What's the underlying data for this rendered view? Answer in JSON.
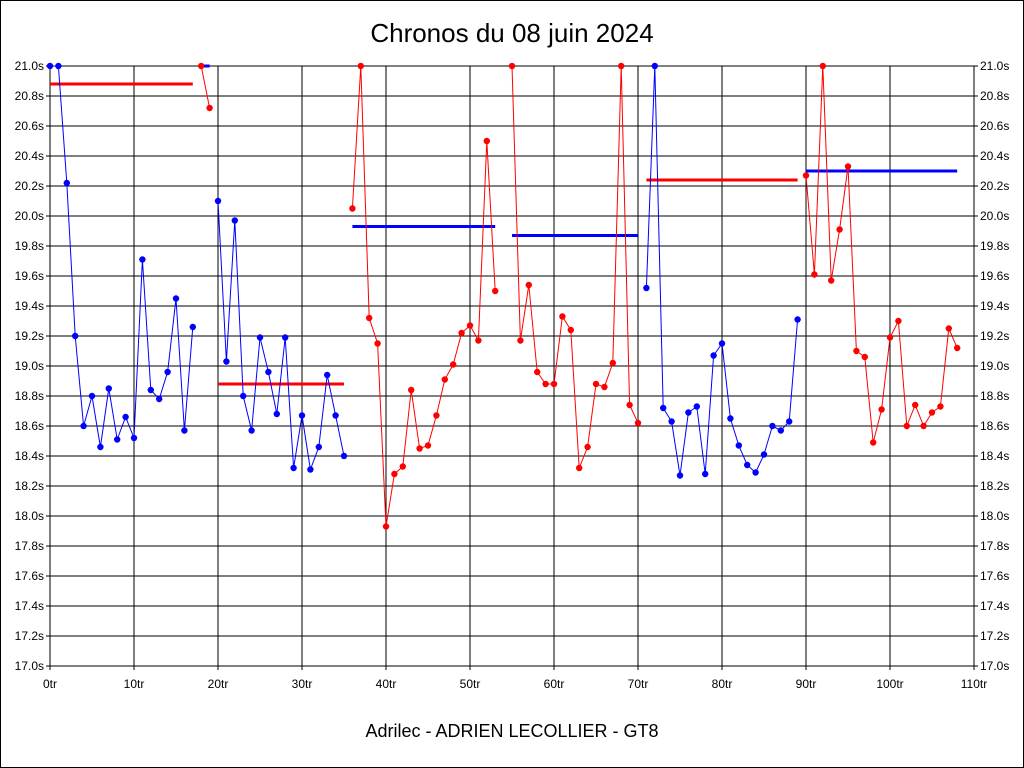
{
  "chart_data": {
    "type": "line",
    "title": "Chronos du 08 juin 2024",
    "footer": "Adrilec - ADRIEN LECOLLIER - GT8",
    "xlabel": "",
    "ylabel": "",
    "xlim": [
      0,
      110
    ],
    "ylim": [
      17.0,
      21.0
    ],
    "grid": true,
    "x_ticks": [
      {
        "value": 0,
        "label": "0tr"
      },
      {
        "value": 10,
        "label": "10tr"
      },
      {
        "value": 20,
        "label": "20tr"
      },
      {
        "value": 30,
        "label": "30tr"
      },
      {
        "value": 40,
        "label": "40tr"
      },
      {
        "value": 50,
        "label": "50tr"
      },
      {
        "value": 60,
        "label": "60tr"
      },
      {
        "value": 70,
        "label": "70tr"
      },
      {
        "value": 80,
        "label": "80tr"
      },
      {
        "value": 90,
        "label": "90tr"
      },
      {
        "value": 100,
        "label": "100tr"
      },
      {
        "value": 110,
        "label": "110tr"
      }
    ],
    "y_ticks": [
      {
        "value": 17.0,
        "label": "17.0s"
      },
      {
        "value": 17.2,
        "label": "17.2s"
      },
      {
        "value": 17.4,
        "label": "17.4s"
      },
      {
        "value": 17.6,
        "label": "17.6s"
      },
      {
        "value": 17.8,
        "label": "17.8s"
      },
      {
        "value": 18.0,
        "label": "18.0s"
      },
      {
        "value": 18.2,
        "label": "18.2s"
      },
      {
        "value": 18.4,
        "label": "18.4s"
      },
      {
        "value": 18.6,
        "label": "18.6s"
      },
      {
        "value": 18.8,
        "label": "18.8s"
      },
      {
        "value": 19.0,
        "label": "19.0s"
      },
      {
        "value": 19.2,
        "label": "19.2s"
      },
      {
        "value": 19.4,
        "label": "19.4s"
      },
      {
        "value": 19.6,
        "label": "19.6s"
      },
      {
        "value": 19.8,
        "label": "19.8s"
      },
      {
        "value": 20.0,
        "label": "20.0s"
      },
      {
        "value": 20.2,
        "label": "20.2s"
      },
      {
        "value": 20.4,
        "label": "20.4s"
      },
      {
        "value": 20.6,
        "label": "20.6s"
      },
      {
        "value": 20.8,
        "label": "20.8s"
      },
      {
        "value": 21.0,
        "label": "21.0s"
      }
    ],
    "series": [
      {
        "color": "#0000ff",
        "points": [
          [
            0,
            21.0
          ],
          [
            1,
            21.0
          ],
          [
            2,
            20.22
          ],
          [
            3,
            19.2
          ],
          [
            4,
            18.6
          ],
          [
            5,
            18.8
          ],
          [
            6,
            18.46
          ],
          [
            7,
            18.85
          ],
          [
            8,
            18.51
          ],
          [
            9,
            18.66
          ],
          [
            10,
            18.52
          ],
          [
            11,
            19.71
          ],
          [
            12,
            18.84
          ],
          [
            13,
            18.78
          ],
          [
            14,
            18.96
          ],
          [
            15,
            19.45
          ],
          [
            16,
            18.57
          ],
          [
            17,
            19.26
          ]
        ]
      },
      {
        "color": "#ff0000",
        "points": [
          [
            18,
            21.0
          ],
          [
            19,
            20.72
          ]
        ]
      },
      {
        "color": "#0000ff",
        "points": [
          [
            20,
            20.1
          ],
          [
            21,
            19.03
          ],
          [
            22,
            19.97
          ],
          [
            23,
            18.8
          ],
          [
            24,
            18.57
          ],
          [
            25,
            19.19
          ],
          [
            26,
            18.96
          ],
          [
            27,
            18.68
          ],
          [
            28,
            19.19
          ],
          [
            29,
            18.32
          ],
          [
            30,
            18.67
          ],
          [
            31,
            18.31
          ],
          [
            32,
            18.46
          ],
          [
            33,
            18.94
          ],
          [
            34,
            18.67
          ],
          [
            35,
            18.4
          ]
        ]
      },
      {
        "color": "#ff0000",
        "points": [
          [
            36,
            20.05
          ],
          [
            37,
            21.0
          ],
          [
            38,
            19.32
          ],
          [
            39,
            19.15
          ],
          [
            40,
            17.93
          ],
          [
            41,
            18.28
          ],
          [
            42,
            18.33
          ],
          [
            43,
            18.84
          ],
          [
            44,
            18.45
          ],
          [
            45,
            18.47
          ],
          [
            46,
            18.67
          ],
          [
            47,
            18.91
          ],
          [
            48,
            19.01
          ],
          [
            49,
            19.22
          ],
          [
            50,
            19.27
          ],
          [
            51,
            19.17
          ],
          [
            52,
            20.5
          ],
          [
            53,
            19.5
          ]
        ]
      },
      {
        "color": "#ff0000",
        "points": [
          [
            55,
            21.0
          ],
          [
            56,
            19.17
          ],
          [
            57,
            19.54
          ],
          [
            58,
            18.96
          ],
          [
            59,
            18.88
          ],
          [
            60,
            18.88
          ],
          [
            61,
            19.33
          ],
          [
            62,
            19.24
          ],
          [
            63,
            18.32
          ],
          [
            64,
            18.46
          ],
          [
            65,
            18.88
          ],
          [
            66,
            18.86
          ],
          [
            67,
            19.02
          ],
          [
            68,
            21.0
          ],
          [
            69,
            18.74
          ],
          [
            70,
            18.62
          ]
        ]
      },
      {
        "color": "#0000ff",
        "points": [
          [
            71,
            19.52
          ],
          [
            72,
            21.0
          ],
          [
            73,
            18.72
          ],
          [
            74,
            18.63
          ],
          [
            75,
            18.27
          ],
          [
            76,
            18.69
          ],
          [
            77,
            18.73
          ],
          [
            78,
            18.28
          ],
          [
            79,
            19.07
          ],
          [
            80,
            19.15
          ],
          [
            81,
            18.65
          ],
          [
            82,
            18.47
          ],
          [
            83,
            18.34
          ],
          [
            84,
            18.29
          ],
          [
            85,
            18.41
          ],
          [
            86,
            18.6
          ],
          [
            87,
            18.57
          ],
          [
            88,
            18.63
          ],
          [
            89,
            19.31
          ]
        ]
      },
      {
        "color": "#ff0000",
        "points": [
          [
            90,
            20.27
          ],
          [
            91,
            19.61
          ],
          [
            92,
            21.0
          ],
          [
            93,
            19.57
          ],
          [
            94,
            19.91
          ],
          [
            95,
            20.33
          ],
          [
            96,
            19.1
          ],
          [
            97,
            19.06
          ],
          [
            98,
            18.49
          ],
          [
            99,
            18.71
          ],
          [
            100,
            19.19
          ],
          [
            101,
            19.3
          ],
          [
            102,
            18.6
          ],
          [
            103,
            18.74
          ],
          [
            104,
            18.6
          ],
          [
            105,
            18.69
          ],
          [
            106,
            18.73
          ],
          [
            107,
            19.25
          ],
          [
            108,
            19.12
          ]
        ]
      }
    ],
    "average_lines": [
      {
        "color": "#ff0000",
        "x": [
          0,
          17
        ],
        "y": 20.88
      },
      {
        "color": "#0000ff",
        "x": [
          18,
          19
        ],
        "y": 21.0
      },
      {
        "color": "#ff0000",
        "x": [
          20,
          35
        ],
        "y": 18.88
      },
      {
        "color": "#0000ff",
        "x": [
          36,
          53
        ],
        "y": 19.93
      },
      {
        "color": "#0000ff",
        "x": [
          55,
          70
        ],
        "y": 19.87
      },
      {
        "color": "#ff0000",
        "x": [
          71,
          89
        ],
        "y": 20.24
      },
      {
        "color": "#0000ff",
        "x": [
          90,
          108
        ],
        "y": 20.3
      }
    ]
  }
}
